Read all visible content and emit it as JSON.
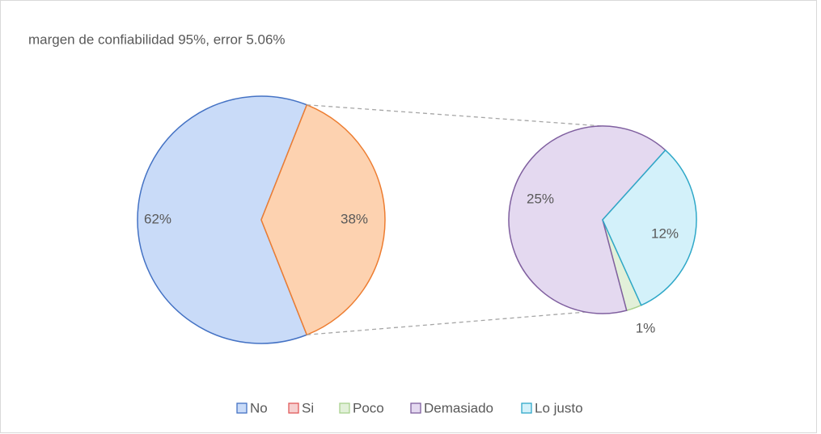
{
  "chart_data": {
    "type": "pie",
    "title": "margen de confiabilidad 95%, error 5.06%",
    "categories": [
      "No",
      "Si",
      "Poco",
      "Demasiado",
      "Lo justo"
    ],
    "values": [
      62,
      0,
      1,
      25,
      12
    ],
    "value_labels": [
      "62%",
      null,
      "1%",
      "25%",
      "12%"
    ],
    "colors": [
      "#c9dbf8",
      "#f6d0d0",
      "#e2f0d9",
      "#e4d9f0",
      "#d3f1fa"
    ],
    "stroke_colors": [
      "#4472c4",
      "#e05a5a",
      "#a9d18e",
      "#7f5f9f",
      "#2fa8c8"
    ],
    "other": {
      "value": 38,
      "value_label": "38%",
      "color": "#fdd2b0",
      "stroke_color": "#ed7d31"
    },
    "legend": "bottom"
  }
}
